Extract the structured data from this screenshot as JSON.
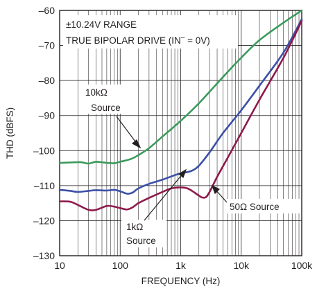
{
  "chart_data": {
    "type": "line",
    "xlabel": "FREQUENCY (Hz)",
    "ylabel": "THD (dBFS)",
    "xscale": "log",
    "xlim": [
      10,
      100000
    ],
    "ylim": [
      -130,
      -60
    ],
    "xticks": [
      {
        "value": 10,
        "label": "10"
      },
      {
        "value": 100,
        "label": "100"
      },
      {
        "value": 1000,
        "label": "1k"
      },
      {
        "value": 10000,
        "label": "10k"
      },
      {
        "value": 100000,
        "label": "100k"
      }
    ],
    "yticks": [
      {
        "value": -60,
        "label": "–60"
      },
      {
        "value": -70,
        "label": "–70"
      },
      {
        "value": -80,
        "label": "–80"
      },
      {
        "value": -90,
        "label": "–90"
      },
      {
        "value": -100,
        "label": "–100"
      },
      {
        "value": -110,
        "label": "–110"
      },
      {
        "value": -120,
        "label": "–120"
      },
      {
        "value": -130,
        "label": "–130"
      }
    ],
    "grid": true,
    "header": {
      "line1": "±10.24V RANGE",
      "line2": "TRUE BIPOLAR DRIVE (IN",
      "line2_sup": "–",
      "line2_end": " = 0V)"
    },
    "series": [
      {
        "color": "#3a9a5b",
        "points": [
          [
            10,
            -103.5
          ],
          [
            15,
            -103.4
          ],
          [
            22,
            -103.3
          ],
          [
            30,
            -103.7
          ],
          [
            40,
            -103.2
          ],
          [
            60,
            -103.5
          ],
          [
            80,
            -103.6
          ],
          [
            100,
            -103.2
          ],
          [
            150,
            -102.4
          ],
          [
            200,
            -101.3
          ],
          [
            300,
            -99.3
          ],
          [
            500,
            -96.0
          ],
          [
            1000,
            -91.5
          ],
          [
            2000,
            -86.5
          ],
          [
            5000,
            -79.0
          ],
          [
            10000,
            -73.5
          ],
          [
            20000,
            -68.5
          ],
          [
            50000,
            -63.5
          ],
          [
            100000,
            -60.0
          ]
        ]
      },
      {
        "color": "#3b4fa8",
        "points": [
          [
            10,
            -111.2
          ],
          [
            15,
            -111.5
          ],
          [
            20,
            -111.8
          ],
          [
            30,
            -111.5
          ],
          [
            40,
            -111.3
          ],
          [
            60,
            -111.4
          ],
          [
            80,
            -111.2
          ],
          [
            100,
            -111.6
          ],
          [
            130,
            -112.3
          ],
          [
            160,
            -112.0
          ],
          [
            200,
            -110.8
          ],
          [
            300,
            -109.5
          ],
          [
            500,
            -108.3
          ],
          [
            800,
            -107.0
          ],
          [
            1000,
            -106.5
          ],
          [
            1500,
            -105.8
          ],
          [
            2000,
            -104.3
          ],
          [
            3000,
            -100.5
          ],
          [
            5000,
            -95.0
          ],
          [
            10000,
            -88.5
          ],
          [
            20000,
            -81.5
          ],
          [
            50000,
            -72.0
          ],
          [
            100000,
            -62.5
          ]
        ]
      },
      {
        "color": "#8e1a4c",
        "points": [
          [
            10,
            -114.5
          ],
          [
            15,
            -114.6
          ],
          [
            20,
            -115.5
          ],
          [
            30,
            -116.9
          ],
          [
            40,
            -116.9
          ],
          [
            60,
            -115.8
          ],
          [
            80,
            -116.0
          ],
          [
            100,
            -116.4
          ],
          [
            130,
            -116.8
          ],
          [
            160,
            -116.2
          ],
          [
            200,
            -115.0
          ],
          [
            300,
            -113.5
          ],
          [
            500,
            -111.8
          ],
          [
            700,
            -110.8
          ],
          [
            1000,
            -110.5
          ],
          [
            1300,
            -110.8
          ],
          [
            1700,
            -112.0
          ],
          [
            2200,
            -113.3
          ],
          [
            2600,
            -113.3
          ],
          [
            3000,
            -111.8
          ],
          [
            4000,
            -107.5
          ],
          [
            6000,
            -102.0
          ],
          [
            10000,
            -95.0
          ],
          [
            20000,
            -85.5
          ],
          [
            50000,
            -73.5
          ],
          [
            100000,
            -63.0
          ]
        ]
      }
    ],
    "annotations": [
      {
        "lines": [
          "10kΩ",
          "Source"
        ]
      },
      {
        "lines": [
          "1kΩ",
          "Source"
        ]
      },
      {
        "lines": [
          "50Ω Source"
        ]
      }
    ]
  }
}
